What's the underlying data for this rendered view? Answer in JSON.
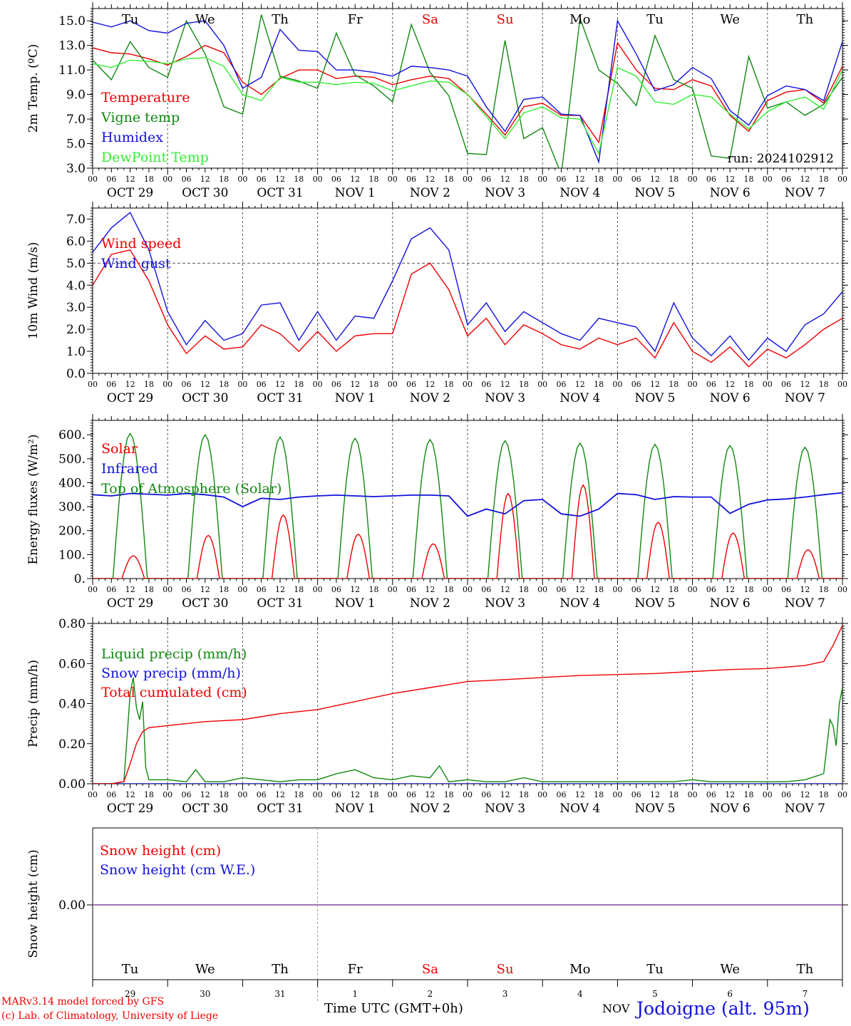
{
  "run_label": "run: 2024102912",
  "footer": {
    "model": "MARv3.14 model forced by GFS",
    "lab": "(c) Lab. of Climatology, University of Liege",
    "axis_title": "Time UTC (GMT+0h)",
    "month_label": "NOV",
    "station": "Jodoigne (alt. 95m)"
  },
  "days": [
    {
      "dow": "Tu",
      "date": "OCT 29",
      "num": "29",
      "weekend": false
    },
    {
      "dow": "We",
      "date": "OCT 30",
      "num": "30",
      "weekend": false
    },
    {
      "dow": "Th",
      "date": "OCT 31",
      "num": "31",
      "weekend": false
    },
    {
      "dow": "Fr",
      "date": "NOV 1",
      "num": "1",
      "weekend": false
    },
    {
      "dow": "Sa",
      "date": "NOV 2",
      "num": "2",
      "weekend": true
    },
    {
      "dow": "Su",
      "date": "NOV 3",
      "num": "3",
      "weekend": true
    },
    {
      "dow": "Mo",
      "date": "NOV 4",
      "num": "4",
      "weekend": false
    },
    {
      "dow": "Tu",
      "date": "NOV 5",
      "num": "5",
      "weekend": false
    },
    {
      "dow": "We",
      "date": "NOV 6",
      "num": "6",
      "weekend": false
    },
    {
      "dow": "Th",
      "date": "NOV 7",
      "num": "7",
      "weekend": false
    }
  ],
  "hour_ticks": [
    "00",
    "06",
    "12",
    "18"
  ],
  "end_hour_tick": "00",
  "colors": {
    "red": "#ee0000",
    "green": "#118811",
    "blue": "#1111dd",
    "lightgreen": "#33ee33",
    "purple": "#884499",
    "axis": "#000000",
    "grid": "#555555"
  },
  "chart_data": [
    {
      "type": "line",
      "ylabel": "2m Temp. (ºC)",
      "ylim": [
        3,
        16
      ],
      "yticks": [
        "3.0",
        "5.0",
        "7.0",
        "9.0",
        "11.0",
        "13.0",
        "15.0"
      ],
      "show_days": true,
      "x_unit": "hours since OCT 29 00 UTC",
      "series": [
        {
          "name": "Temperature",
          "color": "#ee0000",
          "x": [
            0,
            6,
            12,
            18,
            24,
            30,
            36,
            42,
            48,
            54,
            60,
            66,
            72,
            78,
            84,
            90,
            96,
            102,
            108,
            114,
            120,
            126,
            132,
            138,
            144,
            150,
            156,
            162,
            168,
            174,
            180,
            186,
            192,
            198,
            204,
            210,
            216,
            222,
            228,
            234,
            240
          ],
          "y": [
            12.8,
            12.4,
            12.3,
            11.9,
            11.4,
            12.1,
            13.0,
            12.4,
            10.0,
            9.0,
            10.3,
            11.0,
            11.0,
            10.3,
            10.5,
            10.4,
            9.8,
            10.2,
            10.5,
            10.3,
            9.0,
            7.4,
            5.7,
            8.0,
            8.3,
            7.3,
            7.3,
            5.1,
            13.2,
            11.0,
            9.5,
            9.4,
            10.2,
            9.7,
            7.3,
            6.0,
            8.5,
            9.2,
            9.4,
            8.3,
            11.3
          ]
        },
        {
          "name": "Vigne temp",
          "color": "#118811",
          "x": [
            0,
            6,
            12,
            18,
            24,
            30,
            36,
            42,
            48,
            54,
            60,
            66,
            72,
            78,
            84,
            90,
            96,
            102,
            108,
            114,
            120,
            126,
            132,
            138,
            144,
            150,
            156,
            162,
            168,
            174,
            180,
            186,
            192,
            198,
            204,
            210,
            216,
            222,
            228,
            234,
            240
          ],
          "y": [
            11.8,
            10.2,
            13.3,
            11.2,
            10.4,
            15.0,
            12.3,
            8.0,
            7.4,
            15.5,
            10.5,
            10.1,
            9.5,
            14.0,
            10.6,
            9.7,
            8.4,
            14.7,
            10.8,
            8.9,
            4.2,
            4.1,
            13.4,
            5.4,
            6.3,
            2.5,
            15.2,
            11.0,
            9.9,
            8.1,
            13.8,
            10.2,
            9.5,
            4.0,
            3.8,
            12.1,
            7.9,
            8.4,
            7.3,
            8.2,
            10.4
          ]
        },
        {
          "name": "Humidex",
          "color": "#1111dd",
          "x": [
            0,
            6,
            12,
            18,
            24,
            30,
            36,
            42,
            48,
            54,
            60,
            66,
            72,
            78,
            84,
            90,
            96,
            102,
            108,
            114,
            120,
            126,
            132,
            138,
            144,
            150,
            156,
            162,
            168,
            174,
            180,
            186,
            192,
            198,
            204,
            210,
            216,
            222,
            228,
            234,
            240
          ],
          "y": [
            14.9,
            14.5,
            15.0,
            14.2,
            14.0,
            14.8,
            15.0,
            13.0,
            9.5,
            10.4,
            14.3,
            12.6,
            12.5,
            11.0,
            11.0,
            10.8,
            10.5,
            11.3,
            11.2,
            11.0,
            10.5,
            8.0,
            6.0,
            8.6,
            8.8,
            7.4,
            7.3,
            3.5,
            15.0,
            12.3,
            9.3,
            9.8,
            11.2,
            10.3,
            7.7,
            6.5,
            8.9,
            9.7,
            9.4,
            8.5,
            13.3
          ]
        },
        {
          "name": "DewPoint Temp",
          "color": "#33ee33",
          "x": [
            0,
            6,
            12,
            18,
            24,
            30,
            36,
            42,
            48,
            54,
            60,
            66,
            72,
            78,
            84,
            90,
            96,
            102,
            108,
            114,
            120,
            126,
            132,
            138,
            144,
            150,
            156,
            162,
            168,
            174,
            180,
            186,
            192,
            198,
            204,
            210,
            216,
            222,
            228,
            234,
            240
          ],
          "y": [
            11.5,
            11.2,
            11.8,
            11.7,
            11.5,
            11.9,
            12.0,
            11.3,
            9.0,
            8.5,
            10.4,
            10.0,
            10.0,
            9.8,
            10.0,
            9.9,
            9.3,
            9.7,
            10.1,
            10.0,
            9.0,
            7.2,
            5.4,
            7.5,
            8.0,
            7.1,
            7.0,
            4.2,
            11.2,
            10.5,
            8.4,
            8.2,
            9.0,
            8.8,
            7.4,
            6.2,
            7.6,
            8.4,
            8.8,
            7.8,
            11.0
          ]
        }
      ]
    },
    {
      "type": "line",
      "ylabel": "10m Wind (m/s)",
      "ylim": [
        0,
        7.5
      ],
      "yticks": [
        "0.0",
        "1.0",
        "2.0",
        "3.0",
        "4.0",
        "5.0",
        "6.0",
        "7.0"
      ],
      "reference_line": 5.0,
      "series": [
        {
          "name": "Wind speed",
          "color": "#ee0000",
          "x": [
            0,
            6,
            12,
            18,
            24,
            30,
            36,
            42,
            48,
            54,
            60,
            66,
            72,
            78,
            84,
            90,
            96,
            102,
            108,
            114,
            120,
            126,
            132,
            138,
            144,
            150,
            156,
            162,
            168,
            174,
            180,
            186,
            192,
            198,
            204,
            210,
            216,
            222,
            228,
            234,
            240
          ],
          "y": [
            4.0,
            5.4,
            5.6,
            4.2,
            2.2,
            0.9,
            1.7,
            1.1,
            1.2,
            2.2,
            1.8,
            1.0,
            1.9,
            1.0,
            1.7,
            1.8,
            1.8,
            4.5,
            5.0,
            3.8,
            1.7,
            2.5,
            1.3,
            2.2,
            1.8,
            1.3,
            1.1,
            1.6,
            1.3,
            1.6,
            0.7,
            2.3,
            1.0,
            0.5,
            1.2,
            0.3,
            1.1,
            0.7,
            1.3,
            2.0,
            2.5
          ]
        },
        {
          "name": "Wind gust",
          "color": "#1111dd",
          "x": [
            0,
            6,
            12,
            18,
            24,
            30,
            36,
            42,
            48,
            54,
            60,
            66,
            72,
            78,
            84,
            90,
            96,
            102,
            108,
            114,
            120,
            126,
            132,
            138,
            144,
            150,
            156,
            162,
            168,
            174,
            180,
            186,
            192,
            198,
            204,
            210,
            216,
            222,
            228,
            234,
            240
          ],
          "y": [
            5.5,
            6.6,
            7.3,
            5.6,
            2.8,
            1.3,
            2.4,
            1.5,
            1.8,
            3.1,
            3.2,
            1.5,
            2.8,
            1.5,
            2.6,
            2.5,
            4.2,
            6.1,
            6.6,
            5.6,
            2.2,
            3.2,
            1.9,
            2.8,
            2.3,
            1.8,
            1.5,
            2.5,
            2.3,
            2.1,
            1.0,
            3.2,
            1.6,
            0.8,
            1.7,
            0.6,
            1.6,
            1.0,
            2.2,
            2.7,
            3.7
          ]
        }
      ]
    },
    {
      "type": "line",
      "ylabel": "Energy fluxes (W/m²)",
      "ylim": [
        0,
        660
      ],
      "yticks": [
        "0.",
        "100.",
        "200.",
        "300.",
        "400.",
        "500.",
        "600."
      ],
      "series": [
        {
          "name": "Solar",
          "color": "#ee0000",
          "daily_peaks": [
            95,
            180,
            265,
            185,
            145,
            355,
            390,
            235,
            190,
            120
          ]
        },
        {
          "name": "Infrared",
          "color": "#1111dd",
          "x": [
            0,
            6,
            12,
            18,
            24,
            30,
            36,
            42,
            48,
            54,
            60,
            66,
            72,
            78,
            84,
            90,
            96,
            102,
            108,
            114,
            120,
            126,
            132,
            138,
            144,
            150,
            156,
            162,
            168,
            174,
            180,
            186,
            192,
            198,
            204,
            210,
            216,
            222,
            228,
            234,
            240
          ],
          "y": [
            350,
            345,
            355,
            352,
            348,
            355,
            350,
            340,
            300,
            335,
            330,
            340,
            345,
            348,
            345,
            342,
            345,
            348,
            348,
            345,
            260,
            290,
            270,
            325,
            330,
            270,
            260,
            290,
            355,
            350,
            330,
            342,
            340,
            340,
            272,
            310,
            328,
            332,
            340,
            350,
            358
          ]
        },
        {
          "name": "Top of Atmosphere (Solar)",
          "color": "#118811",
          "daily_peaks": [
            605,
            600,
            590,
            585,
            580,
            575,
            565,
            560,
            555,
            548
          ]
        }
      ]
    },
    {
      "type": "line",
      "ylabel": "Precip (mm/h)",
      "ylim": [
        0,
        0.8
      ],
      "yticks": [
        "0.00",
        "0.20",
        "0.40",
        "0.60",
        "0.80"
      ],
      "series": [
        {
          "name": "Liquid precip (mm/h)",
          "color": "#118811",
          "x": [
            0,
            6,
            10,
            12,
            13,
            14,
            15,
            16,
            17,
            18,
            24,
            30,
            33,
            36,
            42,
            48,
            54,
            60,
            66,
            72,
            78,
            84,
            90,
            96,
            102,
            108,
            111,
            114,
            120,
            126,
            132,
            138,
            144,
            150,
            156,
            162,
            168,
            174,
            180,
            186,
            192,
            198,
            204,
            210,
            216,
            222,
            228,
            234,
            236,
            237,
            238,
            239,
            240
          ],
          "y": [
            0,
            0,
            0.01,
            0.45,
            0.53,
            0.38,
            0.32,
            0.41,
            0.08,
            0.02,
            0.02,
            0.01,
            0.07,
            0.01,
            0.01,
            0.03,
            0.02,
            0.01,
            0.02,
            0.02,
            0.05,
            0.07,
            0.03,
            0.02,
            0.04,
            0.03,
            0.09,
            0.01,
            0.02,
            0.01,
            0.01,
            0.03,
            0.01,
            0.01,
            0.01,
            0.01,
            0.01,
            0.01,
            0.01,
            0.01,
            0.02,
            0.01,
            0.01,
            0.01,
            0.01,
            0.01,
            0.02,
            0.05,
            0.32,
            0.29,
            0.19,
            0.4,
            0.48
          ]
        },
        {
          "name": "Snow precip (mm/h)",
          "color": "#1111dd",
          "x": [
            0,
            240
          ],
          "y": [
            0,
            0
          ]
        },
        {
          "name": "Total cumulated (cm)",
          "color": "#ee0000",
          "x": [
            0,
            6,
            10,
            12,
            14,
            16,
            18,
            24,
            36,
            48,
            60,
            72,
            84,
            96,
            108,
            120,
            132,
            144,
            156,
            168,
            180,
            192,
            204,
            216,
            228,
            234,
            237,
            240
          ],
          "y": [
            0,
            0,
            0.01,
            0.1,
            0.2,
            0.26,
            0.28,
            0.29,
            0.31,
            0.32,
            0.35,
            0.37,
            0.41,
            0.45,
            0.48,
            0.51,
            0.52,
            0.53,
            0.54,
            0.545,
            0.55,
            0.56,
            0.57,
            0.575,
            0.59,
            0.61,
            0.69,
            0.79
          ]
        }
      ]
    },
    {
      "type": "line",
      "ylabel": "Snow height (cm)",
      "yticks": [
        "0.00"
      ],
      "series": [
        {
          "name": "Snow height (cm)",
          "color": "#ee0000",
          "x": [
            0,
            240
          ],
          "y": [
            0,
            0
          ]
        },
        {
          "name": "Snow height (cm W.E.)",
          "color": "#1111dd",
          "x": [
            0,
            240
          ],
          "y": [
            0,
            0
          ]
        }
      ]
    }
  ]
}
